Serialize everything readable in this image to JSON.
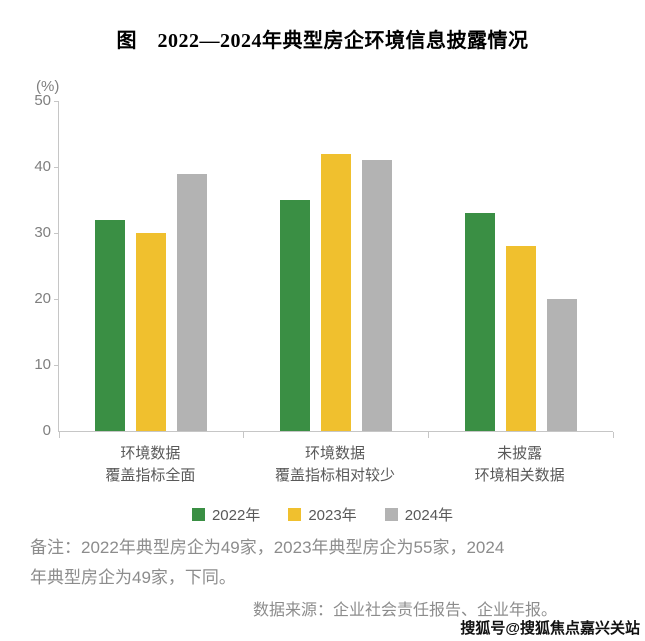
{
  "title": "图　2022—2024年典型房企环境信息披露情况",
  "chart_data": {
    "type": "bar",
    "title": "2022—2024年典型房企环境信息披露情况",
    "unit_label": "(%)",
    "xlabel": "",
    "ylabel": "(%)",
    "categories": [
      "环境数据\n覆盖指标全面",
      "环境数据\n覆盖指标相对较少",
      "未披露\n环境相关数据"
    ],
    "series": [
      {
        "name": "2022年",
        "color": "#3a8f44",
        "values": [
          32,
          35,
          33
        ]
      },
      {
        "name": "2023年",
        "color": "#f0c02e",
        "values": [
          30,
          42,
          28
        ]
      },
      {
        "name": "2024年",
        "color": "#b3b3b3",
        "values": [
          39,
          41,
          20
        ]
      }
    ],
    "ylim": [
      0,
      50
    ],
    "yticks": [
      0,
      10,
      20,
      30,
      40,
      50
    ],
    "grid": false,
    "legend_position": "bottom"
  },
  "note": "备注：2022年典型房企为49家，2023年典型房企为55家，2024\n年典型房企为49家，下同。",
  "source": "数据来源：企业社会责任报告、企业年报。",
  "watermark": "搜狐号@搜狐焦点嘉兴关站"
}
